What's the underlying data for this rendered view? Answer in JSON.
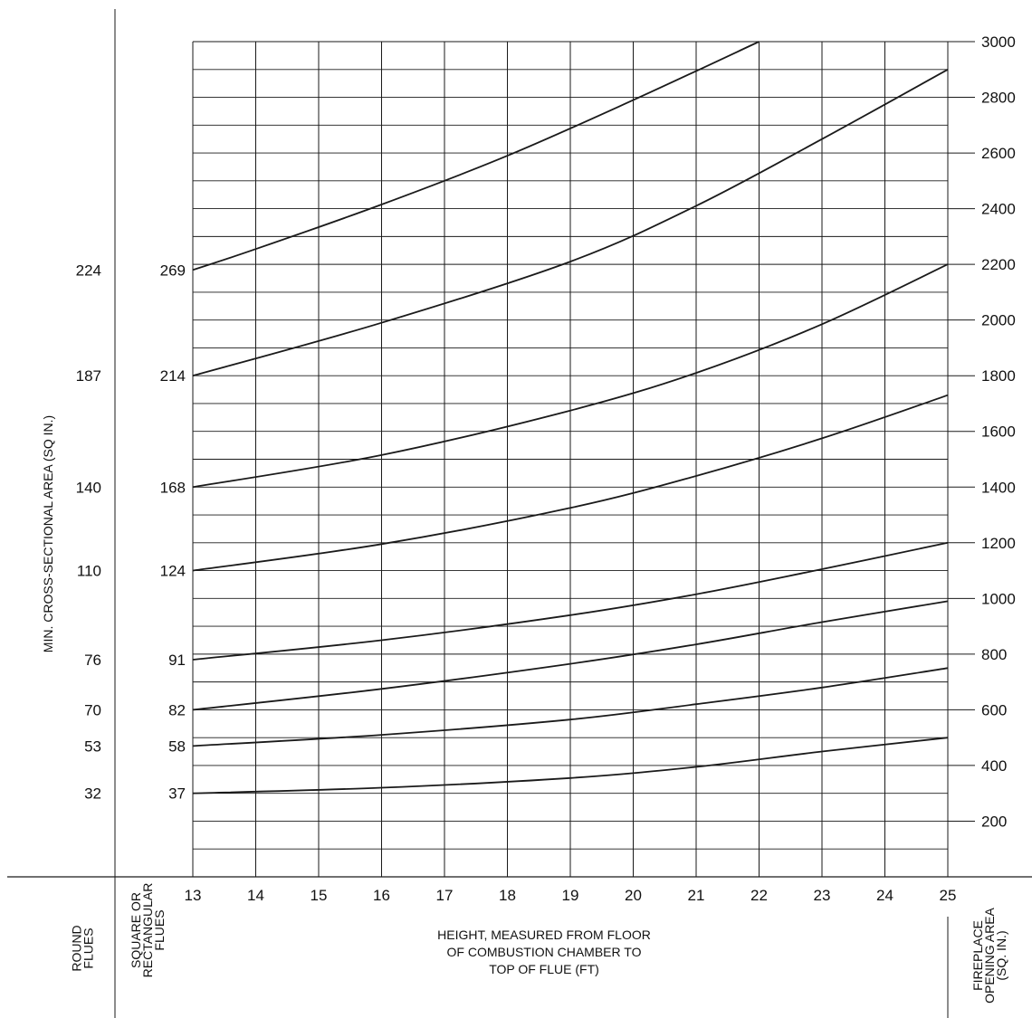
{
  "chart_data": {
    "type": "line",
    "xlabel_lines": [
      "HEIGHT, MEASURED FROM FLOOR",
      "OF COMBUSTION CHAMBER TO",
      "TOP OF FLUE (FT)"
    ],
    "right_axis_label_lines": [
      "FIREPLACE",
      "OPENING AREA",
      "(SQ. IN.)"
    ],
    "left_axis_label": "MIN. CROSS-SECTIONAL AREA (SQ IN.)",
    "round_flues_label_lines": [
      "ROUND",
      "FLUES"
    ],
    "square_flues_label_lines": [
      "SQUARE OR",
      "RECTANGULAR",
      "FLUES"
    ],
    "x_ticks": [
      13,
      14,
      15,
      16,
      17,
      18,
      19,
      20,
      21,
      22,
      23,
      24,
      25
    ],
    "xlim": [
      13,
      25
    ],
    "y_ticks": [
      200,
      400,
      600,
      800,
      1000,
      1200,
      1400,
      1600,
      1800,
      2000,
      2200,
      2400,
      2600,
      2800,
      3000
    ],
    "ylim": [
      0,
      3000
    ],
    "grid": true,
    "series": [
      {
        "round": "32",
        "square": "37",
        "x": [
          13,
          16,
          19,
          21,
          23,
          25
        ],
        "y": [
          300,
          320,
          355,
          395,
          450,
          500
        ]
      },
      {
        "round": "53",
        "square": "58",
        "x": [
          13,
          16,
          19,
          21,
          23,
          25
        ],
        "y": [
          470,
          510,
          565,
          620,
          680,
          750
        ]
      },
      {
        "round": "70",
        "square": "82",
        "x": [
          13,
          16,
          19,
          21,
          23,
          25
        ],
        "y": [
          600,
          675,
          765,
          835,
          915,
          990
        ]
      },
      {
        "round": "76",
        "square": "91",
        "x": [
          13,
          16,
          19,
          21,
          23,
          25
        ],
        "y": [
          780,
          850,
          940,
          1015,
          1105,
          1200
        ]
      },
      {
        "round": "110",
        "square": "124",
        "x": [
          13,
          16,
          19,
          21,
          23,
          25
        ],
        "y": [
          1100,
          1195,
          1325,
          1440,
          1575,
          1730
        ]
      },
      {
        "round": "140",
        "square": "168",
        "x": [
          13,
          16,
          19,
          21,
          23,
          25
        ],
        "y": [
          1400,
          1515,
          1675,
          1810,
          1985,
          2200
        ]
      },
      {
        "round": "187",
        "square": "214",
        "x": [
          13,
          16,
          19,
          21,
          23,
          25
        ],
        "y": [
          1800,
          1990,
          2210,
          2410,
          2650,
          2900
        ]
      },
      {
        "round": "224",
        "square": "269",
        "x": [
          13,
          14,
          16,
          18,
          20,
          22
        ],
        "y": [
          2180,
          2255,
          2415,
          2590,
          2790,
          3000
        ]
      }
    ]
  }
}
